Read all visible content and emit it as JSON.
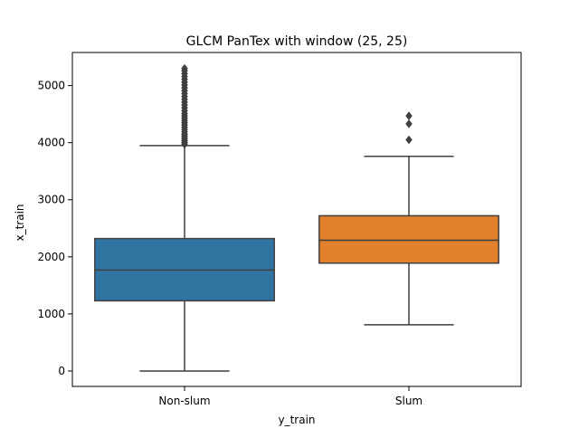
{
  "chart_data": {
    "type": "boxplot",
    "title": "GLCM PanTex with window (25, 25)",
    "xlabel": "y_train",
    "ylabel": "x_train",
    "categories": [
      "Non-slum",
      "Slum"
    ],
    "ylim": [
      -270,
      5580
    ],
    "yticks": [
      0,
      1000,
      2000,
      3000,
      4000,
      5000
    ],
    "grid": false,
    "legend": "none",
    "series": [
      {
        "category": "Non-slum",
        "color": "#3274a1",
        "whisker_low": 0,
        "q1": 1230,
        "median": 1770,
        "q3": 2320,
        "whisker_high": 3950,
        "outliers": [
          3970,
          4000,
          4030,
          4060,
          4090,
          4120,
          4150,
          4190,
          4230,
          4270,
          4310,
          4350,
          4390,
          4430,
          4470,
          4510,
          4560,
          4610,
          4660,
          4710,
          4760,
          4810,
          4860,
          4910,
          4960,
          5010,
          5060,
          5110,
          5160,
          5210,
          5260,
          5300
        ]
      },
      {
        "category": "Slum",
        "color": "#e1812c",
        "whisker_low": 810,
        "q1": 1890,
        "median": 2290,
        "q3": 2720,
        "whisker_high": 3760,
        "outliers": [
          4050,
          4330,
          4470
        ]
      }
    ]
  }
}
